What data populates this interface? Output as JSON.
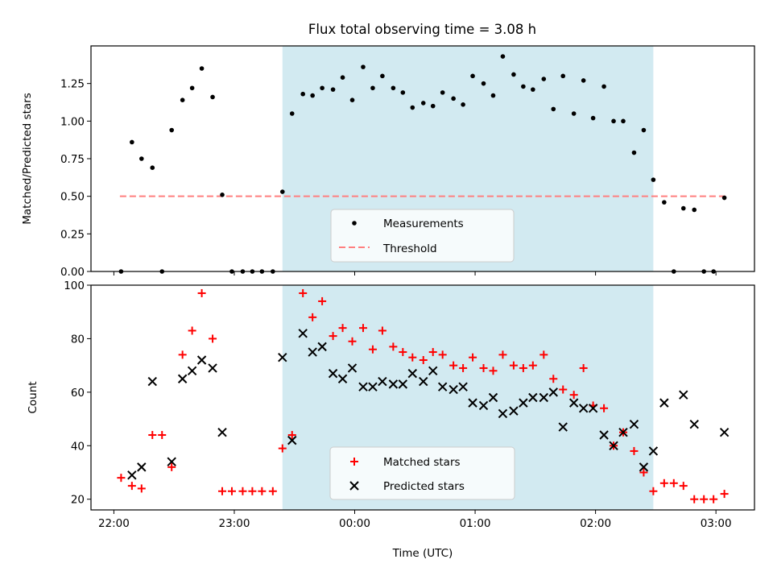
{
  "title": "Flux total observing time = 3.08 h",
  "colors": {
    "shade": "#add8e6",
    "measurement": "#000000",
    "threshold": "#ff7f7f",
    "matched": "#ff0000",
    "predicted": "#000000",
    "axes": "#000000"
  },
  "x_axis": {
    "label": "Time (UTC)",
    "unit": "hours since 22:00 UTC",
    "range": [
      -0.19,
      5.32
    ],
    "ticks": [
      {
        "value": 0,
        "label": "22:00"
      },
      {
        "value": 1,
        "label": "23:00"
      },
      {
        "value": 2,
        "label": "00:00"
      },
      {
        "value": 3,
        "label": "01:00"
      },
      {
        "value": 4,
        "label": "02:00"
      },
      {
        "value": 5,
        "label": "03:00"
      }
    ]
  },
  "chart_data": [
    {
      "type": "scatter",
      "panel": "top",
      "title": "Flux total observing time = 3.08 h",
      "ylabel": "Matched/Predicted stars",
      "ylim": [
        0,
        1.5
      ],
      "yticks": [
        {
          "value": 0,
          "label": "0.00"
        },
        {
          "value": 0.25,
          "label": "0.25"
        },
        {
          "value": 0.5,
          "label": "0.50"
        },
        {
          "value": 0.75,
          "label": "0.75"
        },
        {
          "value": 1.0,
          "label": "1.00"
        },
        {
          "value": 1.25,
          "label": "1.25"
        }
      ],
      "shaded_region": {
        "x_start": 1.4,
        "x_end": 4.48
      },
      "threshold": {
        "name": "Threshold",
        "y": 0.5,
        "x_start": 0.05,
        "x_end": 5.1
      },
      "legend": {
        "position": "lower center",
        "entries": [
          "Measurements",
          "Threshold"
        ]
      },
      "series": [
        {
          "name": "Measurements",
          "marker": "dot",
          "points": [
            [
              0.06,
              0.0
            ],
            [
              0.15,
              0.86
            ],
            [
              0.23,
              0.75
            ],
            [
              0.32,
              0.69
            ],
            [
              0.4,
              0.0
            ],
            [
              0.48,
              0.94
            ],
            [
              0.57,
              1.14
            ],
            [
              0.65,
              1.22
            ],
            [
              0.73,
              1.35
            ],
            [
              0.82,
              1.16
            ],
            [
              0.9,
              0.51
            ],
            [
              0.98,
              0.0
            ],
            [
              1.07,
              0.0
            ],
            [
              1.15,
              0.0
            ],
            [
              1.23,
              0.0
            ],
            [
              1.32,
              0.0
            ],
            [
              1.4,
              0.53
            ],
            [
              1.48,
              1.05
            ],
            [
              1.57,
              1.18
            ],
            [
              1.65,
              1.17
            ],
            [
              1.73,
              1.22
            ],
            [
              1.82,
              1.21
            ],
            [
              1.9,
              1.29
            ],
            [
              1.98,
              1.14
            ],
            [
              2.07,
              1.36
            ],
            [
              2.15,
              1.22
            ],
            [
              2.23,
              1.3
            ],
            [
              2.32,
              1.22
            ],
            [
              2.4,
              1.19
            ],
            [
              2.48,
              1.09
            ],
            [
              2.57,
              1.12
            ],
            [
              2.65,
              1.1
            ],
            [
              2.73,
              1.19
            ],
            [
              2.82,
              1.15
            ],
            [
              2.9,
              1.11
            ],
            [
              2.98,
              1.3
            ],
            [
              3.07,
              1.25
            ],
            [
              3.15,
              1.17
            ],
            [
              3.23,
              1.43
            ],
            [
              3.32,
              1.31
            ],
            [
              3.4,
              1.23
            ],
            [
              3.48,
              1.21
            ],
            [
              3.57,
              1.28
            ],
            [
              3.65,
              1.08
            ],
            [
              3.73,
              1.3
            ],
            [
              3.82,
              1.05
            ],
            [
              3.9,
              1.27
            ],
            [
              3.98,
              1.02
            ],
            [
              4.07,
              1.23
            ],
            [
              4.15,
              1.0
            ],
            [
              4.23,
              1.0
            ],
            [
              4.32,
              0.79
            ],
            [
              4.4,
              0.94
            ],
            [
              4.48,
              0.61
            ],
            [
              4.57,
              0.46
            ],
            [
              4.65,
              0.0
            ],
            [
              4.73,
              0.42
            ],
            [
              4.82,
              0.41
            ],
            [
              4.9,
              0.0
            ],
            [
              4.98,
              0.0
            ],
            [
              5.07,
              0.49
            ]
          ]
        }
      ]
    },
    {
      "type": "scatter",
      "panel": "bottom",
      "xlabel": "Time (UTC)",
      "ylabel": "Count",
      "ylim": [
        16,
        100
      ],
      "yticks": [
        {
          "value": 20,
          "label": "20"
        },
        {
          "value": 40,
          "label": "40"
        },
        {
          "value": 60,
          "label": "60"
        },
        {
          "value": 80,
          "label": "80"
        },
        {
          "value": 100,
          "label": "100"
        }
      ],
      "shaded_region": {
        "x_start": 1.4,
        "x_end": 4.48
      },
      "legend": {
        "position": "lower center",
        "entries": [
          "Matched stars",
          "Predicted stars"
        ]
      },
      "series": [
        {
          "name": "Matched stars",
          "marker": "plus",
          "points": [
            [
              0.06,
              28
            ],
            [
              0.15,
              25
            ],
            [
              0.23,
              24
            ],
            [
              0.32,
              44
            ],
            [
              0.4,
              44
            ],
            [
              0.48,
              32
            ],
            [
              0.57,
              74
            ],
            [
              0.65,
              83
            ],
            [
              0.73,
              97
            ],
            [
              0.82,
              80
            ],
            [
              0.9,
              23
            ],
            [
              0.98,
              23
            ],
            [
              1.07,
              23
            ],
            [
              1.15,
              23
            ],
            [
              1.23,
              23
            ],
            [
              1.32,
              23
            ],
            [
              1.4,
              39
            ],
            [
              1.48,
              44
            ],
            [
              1.57,
              97
            ],
            [
              1.65,
              88
            ],
            [
              1.73,
              94
            ],
            [
              1.82,
              81
            ],
            [
              1.9,
              84
            ],
            [
              1.98,
              79
            ],
            [
              2.07,
              84
            ],
            [
              2.15,
              76
            ],
            [
              2.23,
              83
            ],
            [
              2.32,
              77
            ],
            [
              2.4,
              75
            ],
            [
              2.48,
              73
            ],
            [
              2.57,
              72
            ],
            [
              2.65,
              75
            ],
            [
              2.73,
              74
            ],
            [
              2.82,
              70
            ],
            [
              2.9,
              69
            ],
            [
              2.98,
              73
            ],
            [
              3.07,
              69
            ],
            [
              3.15,
              68
            ],
            [
              3.23,
              74
            ],
            [
              3.32,
              70
            ],
            [
              3.4,
              69
            ],
            [
              3.48,
              70
            ],
            [
              3.57,
              74
            ],
            [
              3.65,
              65
            ],
            [
              3.73,
              61
            ],
            [
              3.82,
              59
            ],
            [
              3.9,
              69
            ],
            [
              3.98,
              55
            ],
            [
              4.07,
              54
            ],
            [
              4.15,
              40
            ],
            [
              4.23,
              45
            ],
            [
              4.32,
              38
            ],
            [
              4.4,
              30
            ],
            [
              4.48,
              23
            ],
            [
              4.57,
              26
            ],
            [
              4.65,
              26
            ],
            [
              4.73,
              25
            ],
            [
              4.82,
              20
            ],
            [
              4.9,
              20
            ],
            [
              4.98,
              20
            ],
            [
              5.07,
              22
            ]
          ]
        },
        {
          "name": "Predicted stars",
          "marker": "x",
          "points": [
            [
              0.15,
              29
            ],
            [
              0.23,
              32
            ],
            [
              0.32,
              64
            ],
            [
              0.48,
              34
            ],
            [
              0.57,
              65
            ],
            [
              0.65,
              68
            ],
            [
              0.73,
              72
            ],
            [
              0.82,
              69
            ],
            [
              0.9,
              45
            ],
            [
              1.4,
              73
            ],
            [
              1.48,
              42
            ],
            [
              1.57,
              82
            ],
            [
              1.65,
              75
            ],
            [
              1.73,
              77
            ],
            [
              1.82,
              67
            ],
            [
              1.9,
              65
            ],
            [
              1.98,
              69
            ],
            [
              2.07,
              62
            ],
            [
              2.15,
              62
            ],
            [
              2.23,
              64
            ],
            [
              2.32,
              63
            ],
            [
              2.4,
              63
            ],
            [
              2.48,
              67
            ],
            [
              2.57,
              64
            ],
            [
              2.65,
              68
            ],
            [
              2.73,
              62
            ],
            [
              2.82,
              61
            ],
            [
              2.9,
              62
            ],
            [
              2.98,
              56
            ],
            [
              3.07,
              55
            ],
            [
              3.15,
              58
            ],
            [
              3.23,
              52
            ],
            [
              3.32,
              53
            ],
            [
              3.4,
              56
            ],
            [
              3.48,
              58
            ],
            [
              3.57,
              58
            ],
            [
              3.65,
              60
            ],
            [
              3.73,
              47
            ],
            [
              3.82,
              56
            ],
            [
              3.9,
              54
            ],
            [
              3.98,
              54
            ],
            [
              4.07,
              44
            ],
            [
              4.15,
              40
            ],
            [
              4.23,
              45
            ],
            [
              4.32,
              48
            ],
            [
              4.4,
              32
            ],
            [
              4.48,
              38
            ],
            [
              4.57,
              56
            ],
            [
              4.73,
              59
            ],
            [
              4.82,
              48
            ],
            [
              5.07,
              45
            ]
          ]
        }
      ]
    }
  ]
}
